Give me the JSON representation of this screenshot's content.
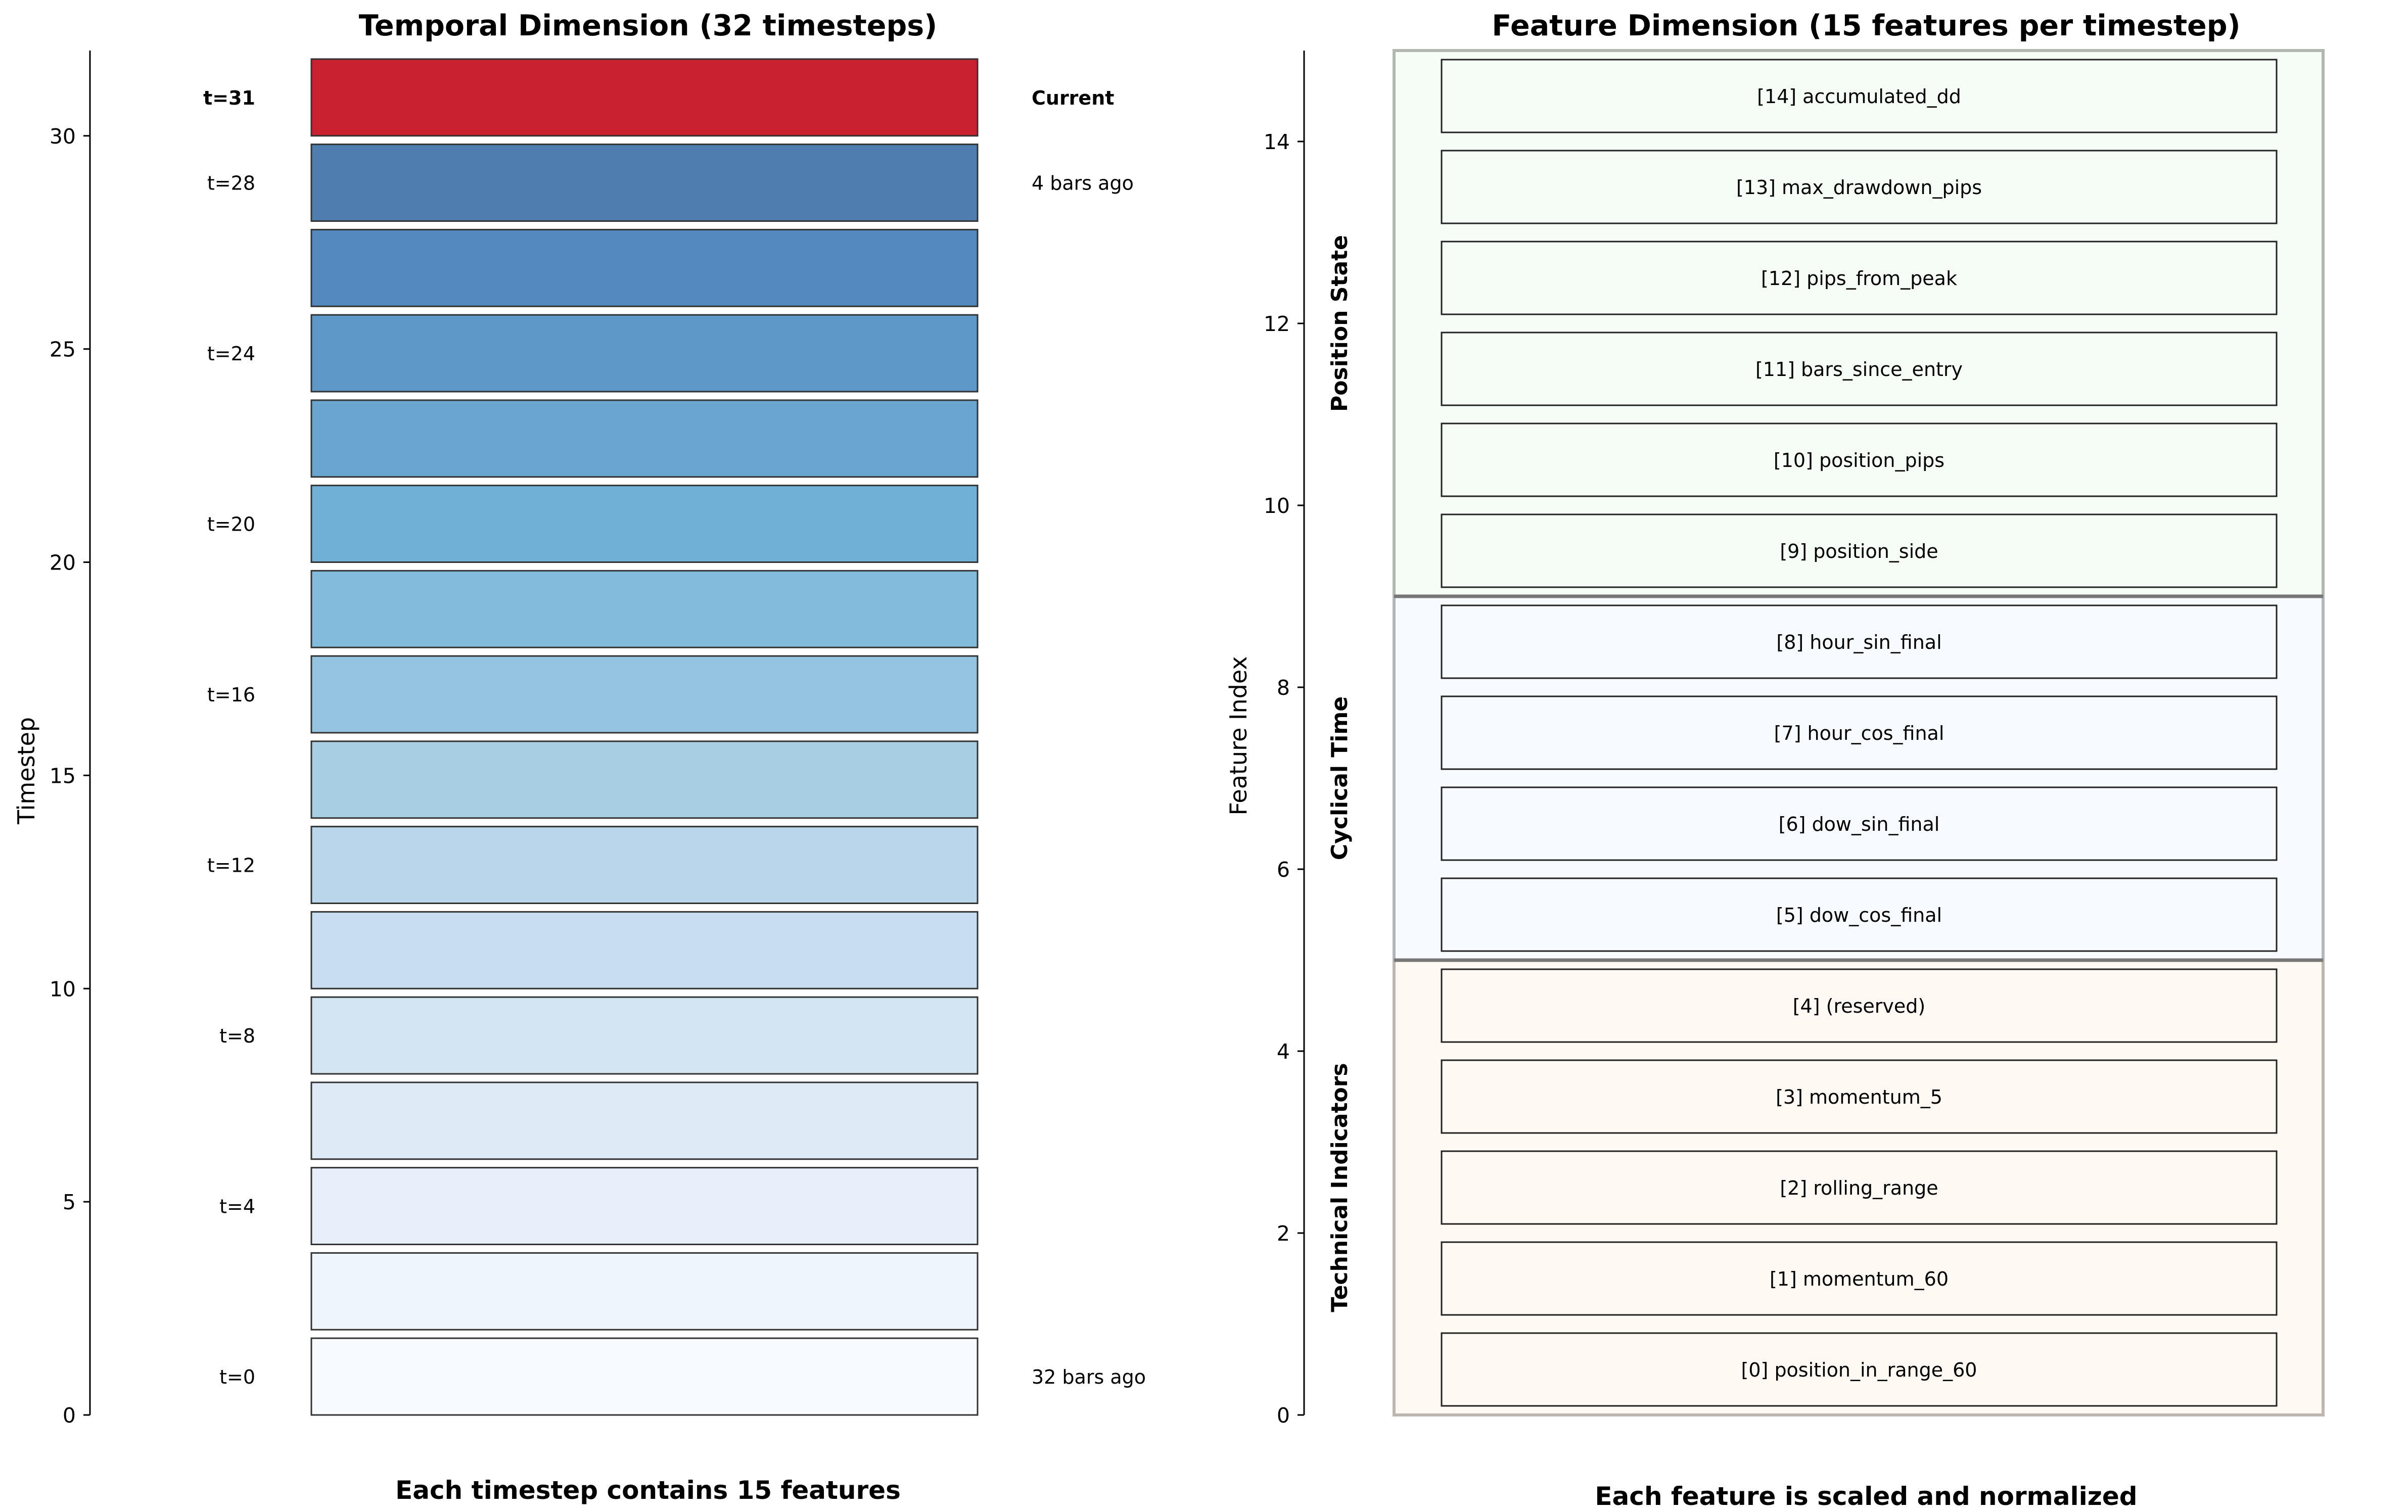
{
  "left": {
    "title": "Temporal Dimension (32 timesteps)",
    "ylabel": "Timestep",
    "yticks": [
      "0",
      "5",
      "10",
      "15",
      "20",
      "25",
      "30"
    ],
    "footer": "Each timestep contains 15 features",
    "timesteps": [
      {
        "t": 0,
        "label": "t=0",
        "note": "32 bars ago",
        "color": "#f7fbff"
      },
      {
        "t": 2,
        "label": "",
        "note": "",
        "color": "#eff5fc"
      },
      {
        "t": 4,
        "label": "t=4",
        "note": "",
        "color": "#e7f0fa"
      },
      {
        "t": 6,
        "label": "",
        "note": "",
        "color": "#deebf7"
      },
      {
        "t": 8,
        "label": "t=8",
        "note": "",
        "color": "#d3e4f3"
      },
      {
        "t": 10,
        "label": "",
        "note": "",
        "color": "#c8ddf0"
      },
      {
        "t": 12,
        "label": "t=12",
        "note": "",
        "color": "#b9d6ea"
      },
      {
        "t": 14,
        "label": "",
        "note": "",
        "color": "#a8cee4"
      },
      {
        "t": 16,
        "label": "t=16",
        "note": "",
        "color": "#94c4df"
      },
      {
        "t": 18,
        "label": "",
        "note": "",
        "color": "#82bbdb"
      },
      {
        "t": 20,
        "label": "t=20",
        "note": "",
        "color": "#70b0d7"
      },
      {
        "t": 22,
        "label": "",
        "note": "",
        "color": "#6aa5d0"
      },
      {
        "t": 24,
        "label": "t=24",
        "note": "",
        "color": "#5d98c9"
      },
      {
        "t": 26,
        "label": "",
        "note": "",
        "color": "#528ac0"
      },
      {
        "t": 28,
        "label": "t=28",
        "note": "4 bars ago",
        "color": "#4f7db0"
      },
      {
        "t": 30,
        "label": "t=31",
        "note": "Current",
        "color": "#c92130",
        "highlight": true
      }
    ]
  },
  "right": {
    "title": "Feature Dimension (15 features per timestep)",
    "ylabel": "Feature Index",
    "yticks": [
      "0",
      "2",
      "4",
      "6",
      "8",
      "10",
      "12",
      "14"
    ],
    "footer": "Each feature is scaled and normalized",
    "groups": [
      {
        "name": "Technical Indicators",
        "from": 0,
        "to": 5,
        "fill": "#fff8f3",
        "edge": "#bdb6b1"
      },
      {
        "name": "Cyclical Time",
        "from": 5,
        "to": 9,
        "fill": "#f7faff",
        "edge": "#b3b6bb"
      },
      {
        "name": "Position State",
        "from": 9,
        "to": 15,
        "fill": "#f6fdf6",
        "edge": "#b1b8b1"
      }
    ],
    "features": [
      "[0] position_in_range_60",
      "[1] momentum_60",
      "[2] rolling_range",
      "[3] momentum_5",
      "[4] (reserved)",
      "[5] dow_cos_final",
      "[6] dow_sin_final",
      "[7] hour_cos_final",
      "[8] hour_sin_final",
      "[9] position_side",
      "[10] position_pips",
      "[11] bars_since_entry",
      "[12] pips_from_peak",
      "[13] max_drawdown_pips",
      "[14] accumulated_dd"
    ]
  }
}
